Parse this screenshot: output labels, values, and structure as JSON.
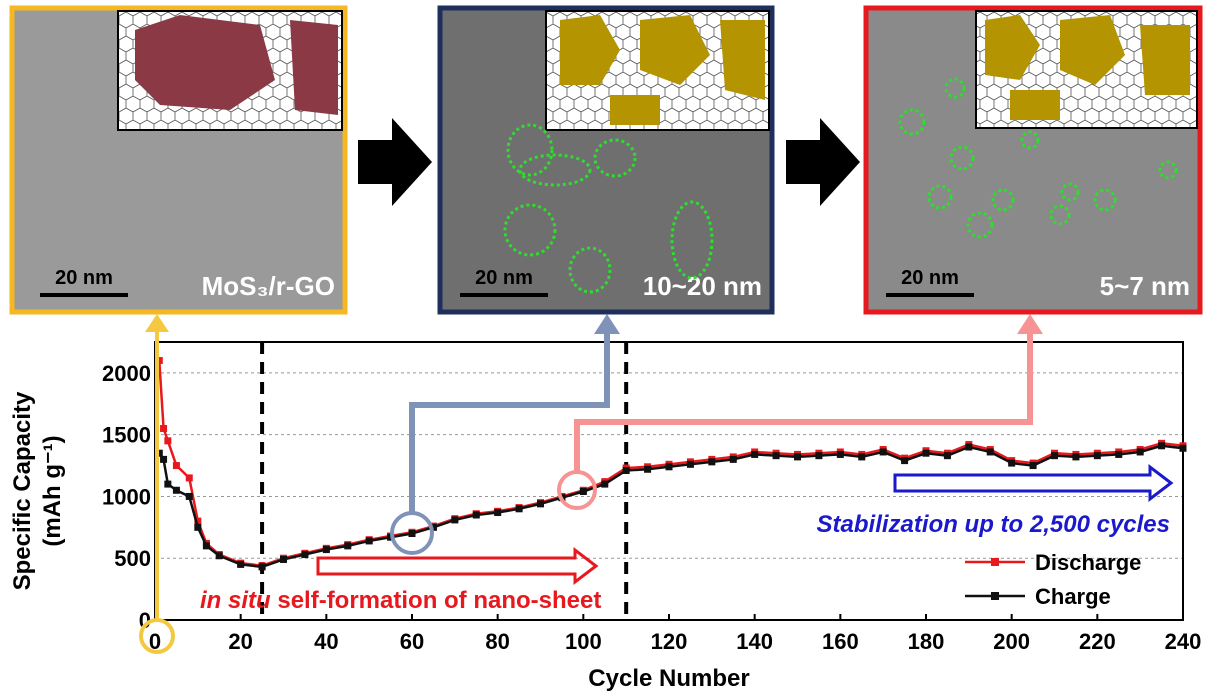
{
  "panels": [
    {
      "scale_bar": "20 nm",
      "label": "MoS₃/r-GO"
    },
    {
      "scale_bar": "20 nm",
      "label": "10~20 nm"
    },
    {
      "scale_bar": "20 nm",
      "label": "5~7 nm"
    }
  ],
  "chart_data": {
    "type": "line",
    "y_label": [
      "Specific Capacity",
      "(mAh g⁻¹)"
    ],
    "x_label": "Cycle Number",
    "x": [
      1,
      2,
      3,
      5,
      8,
      10,
      12,
      15,
      20,
      25,
      30,
      35,
      40,
      45,
      50,
      55,
      60,
      65,
      70,
      75,
      80,
      85,
      90,
      95,
      100,
      105,
      110,
      115,
      120,
      125,
      130,
      135,
      140,
      145,
      150,
      155,
      160,
      165,
      170,
      175,
      180,
      185,
      190,
      195,
      200,
      205,
      210,
      215,
      220,
      225,
      230,
      235,
      240
    ],
    "series": [
      {
        "name": "Discharge",
        "color": "#e8191e",
        "values": [
          2100,
          1550,
          1450,
          1250,
          1150,
          800,
          620,
          530,
          460,
          440,
          500,
          540,
          580,
          610,
          650,
          680,
          710,
          760,
          820,
          860,
          880,
          910,
          950,
          1000,
          1050,
          1120,
          1230,
          1240,
          1260,
          1280,
          1300,
          1320,
          1360,
          1350,
          1340,
          1350,
          1360,
          1340,
          1380,
          1310,
          1370,
          1350,
          1420,
          1380,
          1290,
          1270,
          1350,
          1340,
          1350,
          1360,
          1380,
          1430,
          1410
        ]
      },
      {
        "name": "Charge",
        "color": "#111111",
        "values": [
          1350,
          1300,
          1100,
          1050,
          1000,
          750,
          600,
          520,
          450,
          430,
          490,
          530,
          570,
          600,
          640,
          670,
          700,
          750,
          810,
          850,
          870,
          900,
          940,
          990,
          1040,
          1100,
          1210,
          1220,
          1240,
          1260,
          1280,
          1300,
          1340,
          1330,
          1320,
          1330,
          1340,
          1320,
          1360,
          1290,
          1350,
          1330,
          1400,
          1360,
          1270,
          1250,
          1330,
          1320,
          1330,
          1340,
          1360,
          1410,
          1390
        ]
      }
    ],
    "xlim": [
      0,
      240
    ],
    "ylim": [
      0,
      2250
    ],
    "xticks": [
      0,
      20,
      40,
      60,
      80,
      100,
      120,
      140,
      160,
      180,
      200,
      220,
      240
    ],
    "yticks": [
      0,
      500,
      1000,
      1500,
      2000
    ],
    "grid": true,
    "markers": [
      25,
      110
    ],
    "annotations": {
      "formation": [
        "in situ",
        " self-formation of nano-sheet"
      ],
      "stabilization": "Stabilization up to 2,500 cycles"
    },
    "legend": "lower right"
  }
}
